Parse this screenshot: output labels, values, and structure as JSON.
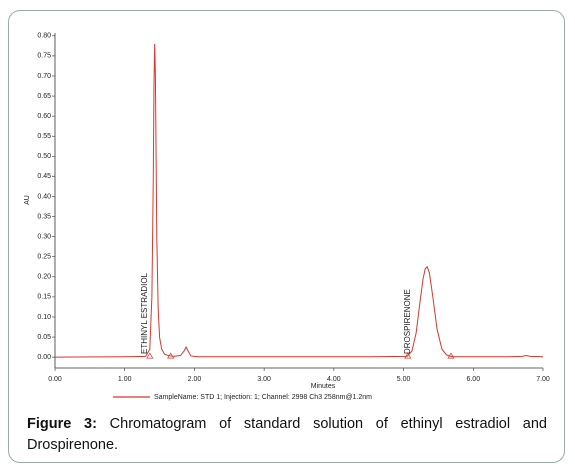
{
  "chart_data": {
    "type": "line",
    "x_label": "Minutes",
    "y_label": "AU",
    "x": [
      0,
      1.0,
      1.3,
      1.36,
      1.39,
      1.41,
      1.42,
      1.43,
      1.44,
      1.45,
      1.46,
      1.48,
      1.5,
      1.53,
      1.57,
      1.62,
      1.7,
      1.8,
      1.85,
      1.88,
      1.91,
      1.95,
      2.05,
      3.0,
      4.5,
      5.05,
      5.12,
      5.18,
      5.23,
      5.28,
      5.31,
      5.34,
      5.37,
      5.42,
      5.48,
      5.55,
      5.62,
      5.7,
      6.5,
      6.7,
      6.76,
      6.82,
      7.0
    ],
    "series": [
      {
        "name": "SampleName: STD 1;   Injection: 1;   Channel: 2998 Ch3 258nm@1.2nm",
        "color": "#d9362b",
        "values": [
          0,
          0.001,
          0.002,
          0.02,
          0.15,
          0.45,
          0.68,
          0.78,
          0.7,
          0.5,
          0.3,
          0.12,
          0.05,
          0.02,
          0.008,
          0.004,
          0.002,
          0.004,
          0.015,
          0.025,
          0.015,
          0.003,
          0.001,
          0.001,
          0.001,
          0.002,
          0.015,
          0.06,
          0.13,
          0.195,
          0.22,
          0.225,
          0.21,
          0.15,
          0.07,
          0.02,
          0.005,
          0.001,
          0.001,
          0.002,
          0.004,
          0.002,
          0.001
        ]
      }
    ],
    "annotations": [
      "ETHINYL ESTRADIOL",
      "DROSPIRENONE"
    ],
    "baseline_marks_x": [
      1.36,
      1.66,
      5.06,
      5.68
    ],
    "xlim": [
      0,
      7
    ],
    "ylim": [
      -0.027,
      0.807
    ],
    "xticks": [
      {
        "value": 0,
        "label": "0.00"
      },
      {
        "value": 1,
        "label": "1.00"
      },
      {
        "value": 2,
        "label": "2.00"
      },
      {
        "value": 3,
        "label": "3.00"
      },
      {
        "value": 4,
        "label": "4.00"
      },
      {
        "value": 5,
        "label": "5.00"
      },
      {
        "value": 6,
        "label": "6.00"
      },
      {
        "value": 7,
        "label": "7.00"
      }
    ],
    "yticks": [
      {
        "value": 0,
        "label": "0.00"
      },
      {
        "value": 0.05,
        "label": "0.05"
      },
      {
        "value": 0.1,
        "label": "0.10"
      },
      {
        "value": 0.15,
        "label": "0.15"
      },
      {
        "value": 0.2,
        "label": "0.20"
      },
      {
        "value": 0.25,
        "label": "0.25"
      },
      {
        "value": 0.3,
        "label": "0.30"
      },
      {
        "value": 0.35,
        "label": "0.35"
      },
      {
        "value": 0.4,
        "label": "0.40"
      },
      {
        "value": 0.45,
        "label": "0.45"
      },
      {
        "value": 0.5,
        "label": "0.50"
      },
      {
        "value": 0.55,
        "label": "0.55"
      },
      {
        "value": 0.6,
        "label": "0.60"
      },
      {
        "value": 0.65,
        "label": "0.65"
      },
      {
        "value": 0.7,
        "label": "0.70"
      },
      {
        "value": 0.75,
        "label": "0.75"
      },
      {
        "value": 0.8,
        "label": "0.80"
      }
    ],
    "grid": false
  },
  "caption": {
    "label": "Figure 3:",
    "text": "Chromatogram of standard solution of ethinyl estradiol and Drospirenone."
  }
}
